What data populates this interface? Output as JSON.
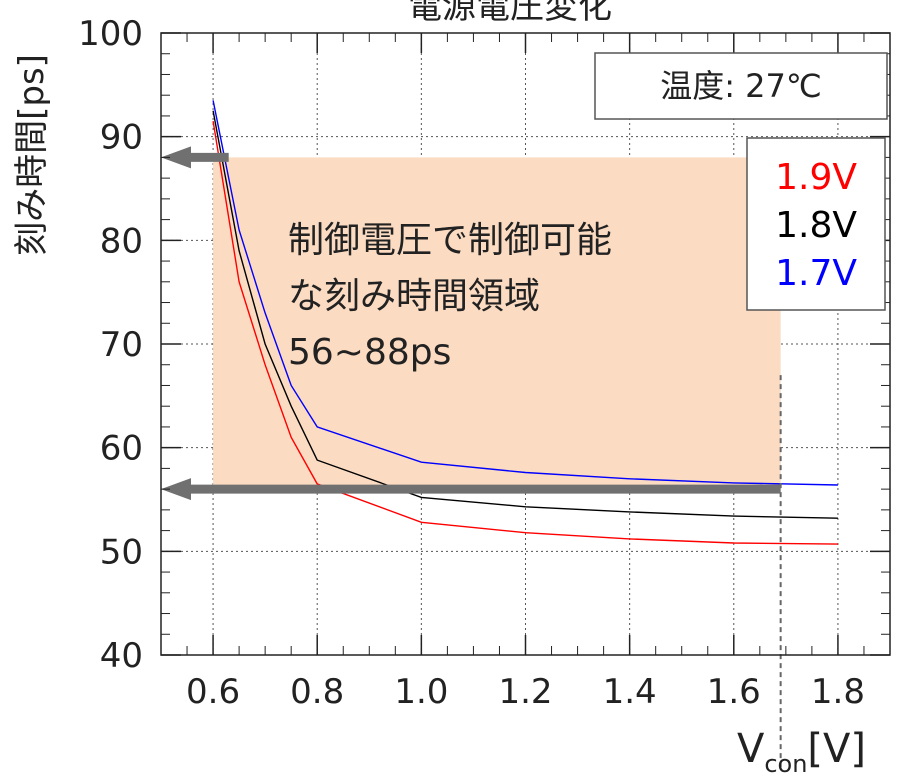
{
  "chart_data": {
    "type": "line",
    "title": "電源電圧変化",
    "xlabel": {
      "main": "V",
      "sub": "con",
      "unit": "[V]"
    },
    "ylabel": "刻み時間[ps]",
    "xlim": [
      0.5,
      1.9
    ],
    "ylim": [
      40,
      100
    ],
    "x_ticks": [
      "0.6",
      "0.8",
      "1.0",
      "1.2",
      "1.4",
      "1.6",
      "1.8"
    ],
    "y_ticks": [
      "40",
      "50",
      "60",
      "70",
      "80",
      "90",
      "100"
    ],
    "grid": true,
    "series": [
      {
        "name": "1.9V",
        "color": "#ff0000",
        "x": [
          0.6,
          0.65,
          0.7,
          0.75,
          0.8,
          1.0,
          1.2,
          1.4,
          1.6,
          1.8
        ],
        "y": [
          91.5,
          76,
          68,
          61,
          56.5,
          52.8,
          51.8,
          51.2,
          50.8,
          50.7
        ]
      },
      {
        "name": "1.8V",
        "color": "#000000",
        "x": [
          0.6,
          0.65,
          0.7,
          0.75,
          0.8,
          1.0,
          1.2,
          1.4,
          1.6,
          1.8
        ],
        "y": [
          92.5,
          79,
          70,
          64,
          58.8,
          55.2,
          54.3,
          53.8,
          53.4,
          53.2
        ]
      },
      {
        "name": "1.7V",
        "color": "#0000ff",
        "x": [
          0.6,
          0.65,
          0.7,
          0.75,
          0.8,
          1.0,
          1.2,
          1.4,
          1.6,
          1.8
        ],
        "y": [
          93.5,
          81,
          73,
          66,
          62,
          58.6,
          57.6,
          57.0,
          56.6,
          56.4
        ]
      }
    ],
    "legend_position": "upper-right",
    "temperature_label": "温度: 27℃",
    "shaded_region": {
      "x": [
        0.6,
        1.69
      ],
      "y": [
        56,
        88
      ],
      "color": "#fbdcc2",
      "text_lines": [
        "制御電圧で制御可能",
        "な刻み時間領域",
        "56~88ps"
      ]
    },
    "arrows": [
      {
        "y": 88,
        "x_from": 0.63,
        "x_to": 0.5
      },
      {
        "y": 56,
        "x_from": 1.69,
        "x_to": 0.5
      }
    ],
    "dashed_vline_x": 1.69,
    "arrow_color": "#707070"
  }
}
